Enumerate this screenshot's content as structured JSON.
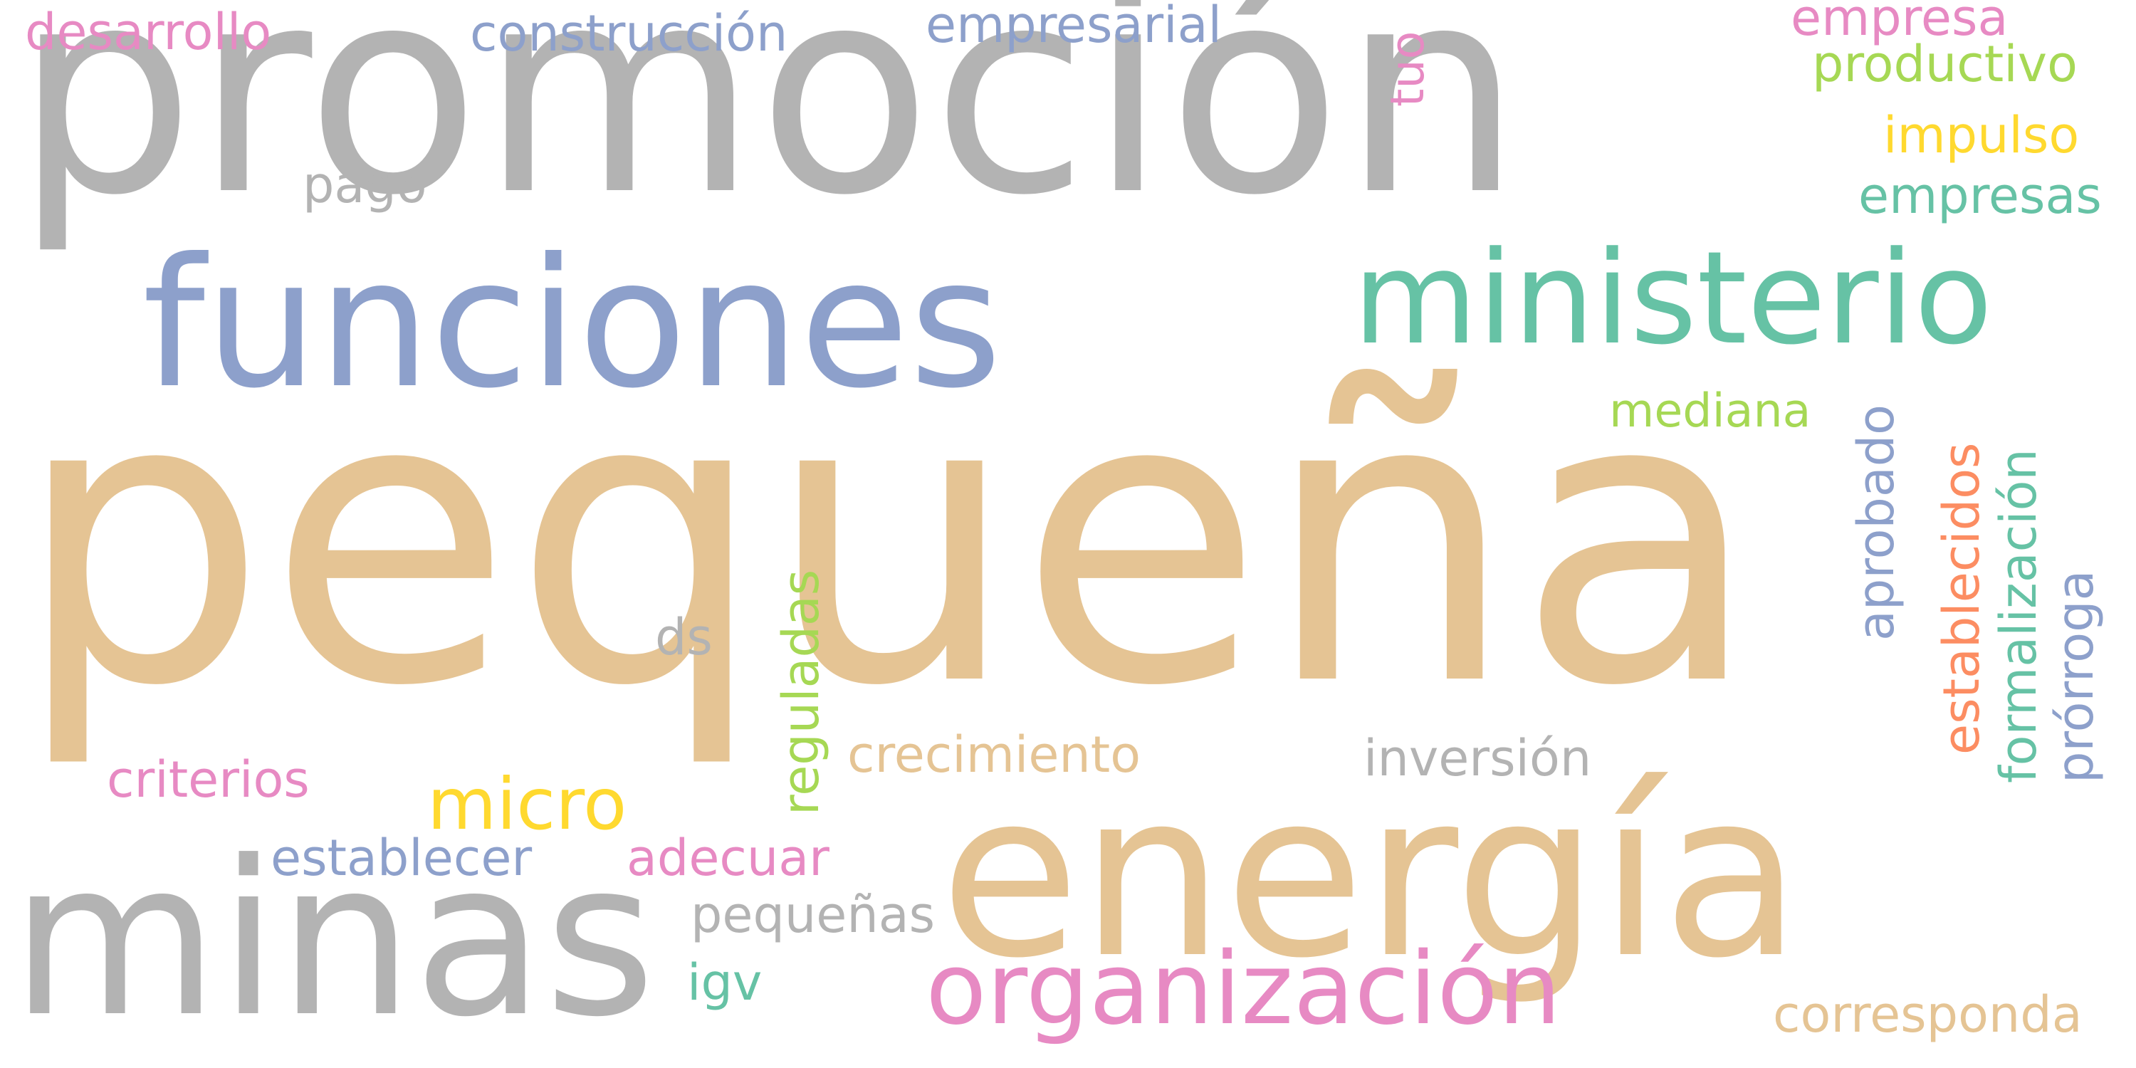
{
  "palette": {
    "gray": "#b3b3b3",
    "tan": "#e5c494",
    "blue": "#8da0cb",
    "green": "#66c2a5",
    "pink": "#e78ac3",
    "lime": "#a6d854",
    "yellow": "#ffd92f",
    "orange": "#fc8d62"
  },
  "words": [
    {
      "text": "promoción",
      "color": "gray"
    },
    {
      "text": "pequeña",
      "color": "tan"
    },
    {
      "text": "funciones",
      "color": "blue"
    },
    {
      "text": "energía",
      "color": "tan"
    },
    {
      "text": "minas",
      "color": "gray"
    },
    {
      "text": "ministerio",
      "color": "green"
    },
    {
      "text": "organización",
      "color": "pink"
    },
    {
      "text": "micro",
      "color": "yellow"
    },
    {
      "text": "desarrollo",
      "color": "pink"
    },
    {
      "text": "construcción",
      "color": "blue"
    },
    {
      "text": "empresarial",
      "color": "blue"
    },
    {
      "text": "tuo",
      "color": "pink"
    },
    {
      "text": "empresa",
      "color": "pink"
    },
    {
      "text": "productivo",
      "color": "lime"
    },
    {
      "text": "impulso",
      "color": "yellow"
    },
    {
      "text": "empresas",
      "color": "green"
    },
    {
      "text": "pago",
      "color": "gray"
    },
    {
      "text": "mediana",
      "color": "lime"
    },
    {
      "text": "aprobado",
      "color": "blue"
    },
    {
      "text": "establecidos",
      "color": "orange"
    },
    {
      "text": "formalización",
      "color": "green"
    },
    {
      "text": "prórroga",
      "color": "blue"
    },
    {
      "text": "reguladas",
      "color": "lime"
    },
    {
      "text": "ds",
      "color": "gray"
    },
    {
      "text": "crecimiento",
      "color": "tan"
    },
    {
      "text": "inversión",
      "color": "gray"
    },
    {
      "text": "criterios",
      "color": "pink"
    },
    {
      "text": "establecer",
      "color": "blue"
    },
    {
      "text": "adecuar",
      "color": "pink"
    },
    {
      "text": "pequeñas",
      "color": "gray"
    },
    {
      "text": "igv",
      "color": "green"
    },
    {
      "text": "corresponda",
      "color": "tan"
    }
  ]
}
